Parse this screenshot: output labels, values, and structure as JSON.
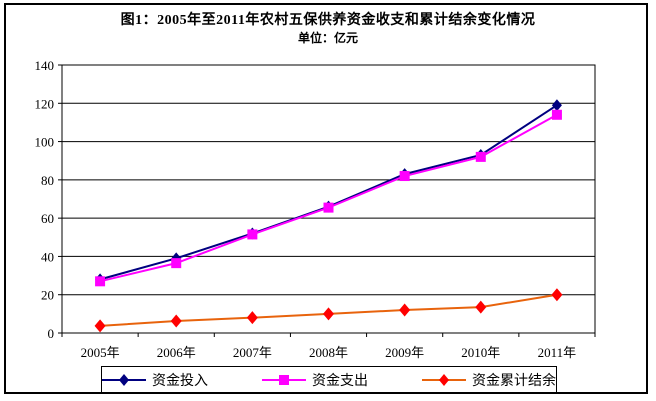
{
  "chart_data": {
    "type": "line",
    "title": "图1：2005年至2011年农村五保供养资金收支和累计结余变化情况",
    "subtitle": "单位：亿元",
    "categories": [
      "2005年",
      "2006年",
      "2007年",
      "2008年",
      "2009年",
      "2010年",
      "2011年"
    ],
    "series": [
      {
        "name": "资金投入",
        "line_color": "#000080",
        "marker": "diamond",
        "marker_color": "#000080",
        "values": [
          28,
          39,
          52,
          66,
          83,
          93,
          119
        ]
      },
      {
        "name": "资金支出",
        "line_color": "#FF00FF",
        "marker": "square",
        "marker_color": "#FF00FF",
        "values": [
          27,
          36.5,
          51.5,
          65.5,
          82,
          92,
          114
        ]
      },
      {
        "name": "资金累计结余",
        "line_color": "#E8630C",
        "marker": "diamond",
        "marker_color": "#FF0000",
        "values": [
          3.7,
          6.3,
          8,
          10,
          12,
          13.5,
          20
        ]
      }
    ],
    "ylim": [
      0,
      140
    ],
    "yticks": [
      0,
      20,
      40,
      60,
      80,
      100,
      120,
      140
    ],
    "xlabel": "",
    "ylabel": "",
    "grid": true,
    "legend_position": "bottom"
  }
}
